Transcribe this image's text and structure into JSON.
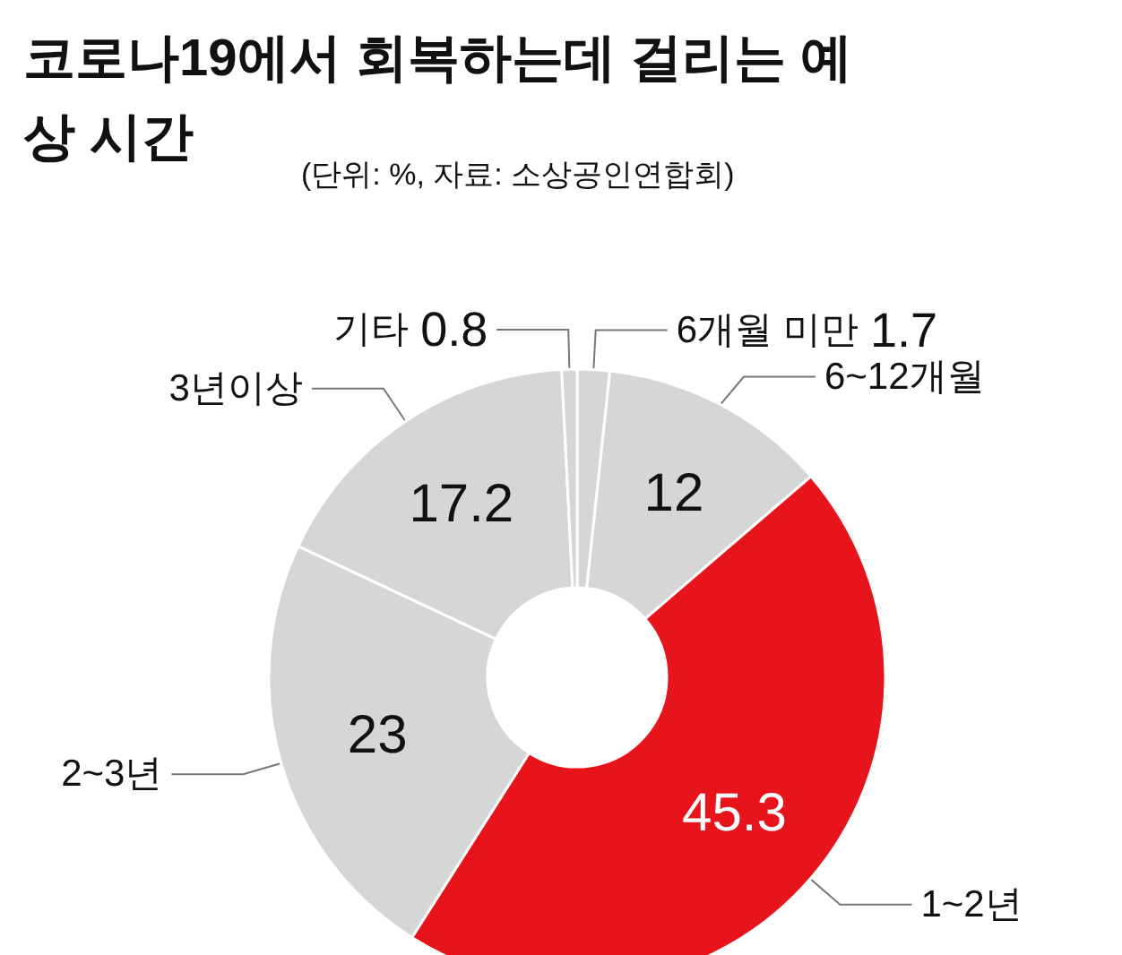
{
  "chart_data": {
    "type": "donut",
    "title": "코로나19에서 회복하는데 걸리는 예상 시간",
    "subtitle": "(단위: %, 자료: 소상공인연합회)",
    "categories": [
      "6개월 미만",
      "6~12개월",
      "1~2년",
      "2~3년",
      "3년이상",
      "기타"
    ],
    "values": [
      1.7,
      12,
      45.3,
      23,
      17.2,
      0.8
    ],
    "colors": [
      "#d6d6d6",
      "#d6d6d6",
      "#e8141b",
      "#d6d6d6",
      "#d6d6d6",
      "#d6d6d6"
    ],
    "data_labels": true,
    "legend": false
  }
}
